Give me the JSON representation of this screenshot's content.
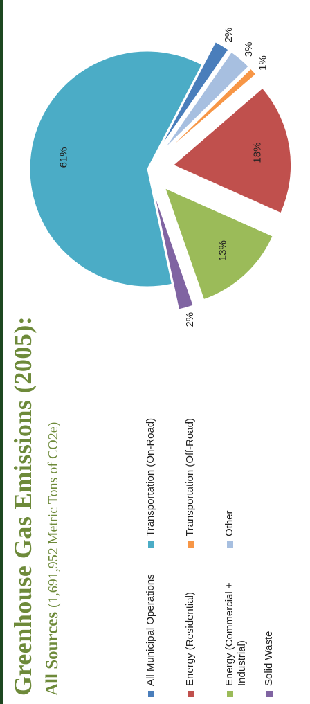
{
  "title": "Greenhouse Gas Emissions (2005):",
  "subtitle_strong": "All Sources",
  "subtitle_light": "(1,691,952 Metric Tons of CO2e)",
  "chart_data": {
    "type": "pie",
    "exploded": true,
    "slices": [
      {
        "name": "All Municipal Operations",
        "value": 2,
        "label": "2%",
        "color": "#4a7ebb"
      },
      {
        "name": "Transportation (On-Road)",
        "value": 61,
        "label": "61%",
        "color": "#4bacc6"
      },
      {
        "name": "Energy (Residential)",
        "value": 18,
        "label": "18%",
        "color": "#c0504d"
      },
      {
        "name": "Transportation  (Off-Road)",
        "value": 1,
        "label": "1%",
        "color": "#f79646"
      },
      {
        "name": "Energy (Commercial + Industrial)",
        "value": 13,
        "label": "13%",
        "color": "#9bbb59"
      },
      {
        "name": "Other",
        "value": 3,
        "label": "3%",
        "color": "#a7bfe0"
      },
      {
        "name": "Solid Waste",
        "value": 2,
        "label": "2%",
        "color": "#8064a2"
      }
    ],
    "legend": {
      "placement": "left",
      "columns": [
        [
          "All Municipal Operations",
          "Energy (Residential)",
          "Energy (Commercial + Industrial)",
          "Solid Waste"
        ],
        [
          "Transportation (On-Road)",
          "Transportation  (Off-Road)",
          "Other"
        ]
      ]
    }
  }
}
